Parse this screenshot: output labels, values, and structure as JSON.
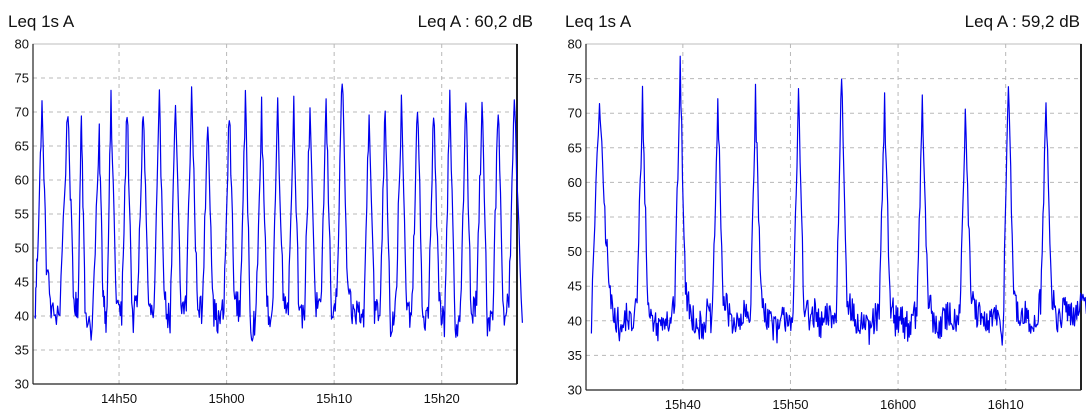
{
  "chart_data": [
    {
      "type": "line",
      "title": "Leq 1s A",
      "leq_label": "Leq A : 60,2 dB",
      "ylim": [
        30,
        80
      ],
      "yticks": [
        30,
        35,
        40,
        45,
        50,
        55,
        60,
        65,
        70,
        75,
        80
      ],
      "xlim": [
        "14h42",
        "15h27"
      ],
      "xticks": [
        "14h50",
        "15h00",
        "15h10",
        "15h20"
      ],
      "grid": true,
      "color": "#0000ee",
      "series": [
        {
          "x": [
            "14h42",
            "14h42",
            "14h42",
            "14h43",
            "14h43",
            "14h44",
            "14h45",
            "14h45",
            "14h46",
            "14h46",
            "14h46",
            "14h47",
            "14h48",
            "14h48",
            "14h48",
            "14h49",
            "14h49",
            "14h50",
            "14h50",
            "14h51",
            "14h51",
            "14h52",
            "14h52",
            "14h53",
            "14h53",
            "14h54",
            "14h54",
            "14h55",
            "14h55",
            "14h56",
            "14h56",
            "14h57",
            "14h57",
            "14h58",
            "14h58",
            "14h59",
            "14h59",
            "15h00",
            "15h00",
            "15h01",
            "15h01",
            "15h02",
            "15h02",
            "15h03",
            "15h03",
            "15h04",
            "15h04",
            "15h05",
            "15h05",
            "15h06",
            "15h06",
            "15h07",
            "15h07",
            "15h08",
            "15h08",
            "15h09",
            "15h09",
            "15h10",
            "15h10",
            "15h11",
            "15h11",
            "15h12",
            "15h12",
            "15h13",
            "15h13",
            "15h14",
            "15h14",
            "15h15",
            "15h15",
            "15h16",
            "15h16",
            "15h17",
            "15h17",
            "15h18",
            "15h18",
            "15h19",
            "15h19",
            "15h20",
            "15h20",
            "15h21",
            "15h21",
            "15h22",
            "15h22",
            "15h23",
            "15h23",
            "15h24",
            "15h24",
            "15h25",
            "15h25",
            "15h26",
            "15h26",
            "15h27"
          ],
          "y": [
            39,
            53,
            71,
            48,
            40,
            41,
            71,
            43,
            40,
            71,
            41,
            38,
            66,
            44,
            39,
            71,
            42,
            40,
            71,
            39,
            43,
            71,
            41,
            40,
            71,
            42,
            39,
            71,
            41,
            42,
            73,
            43,
            40,
            70,
            41,
            39,
            41,
            70,
            42,
            41,
            71,
            38,
            40,
            70,
            41,
            40,
            71,
            43,
            42,
            71,
            39,
            41,
            71,
            42,
            40,
            71,
            41,
            42,
            76,
            43,
            40,
            41,
            39,
            71,
            41,
            40,
            71,
            38,
            42,
            71,
            40,
            41,
            71,
            39,
            40,
            70,
            42,
            39,
            71,
            38,
            41,
            71,
            40,
            42,
            71,
            39,
            41,
            71,
            40,
            42,
            71,
            39
          ]
        }
      ]
    },
    {
      "type": "line",
      "title": "Leq 1s A",
      "leq_label": "Leq A : 59,2 dB",
      "ylim": [
        30,
        80
      ],
      "yticks": [
        30,
        35,
        40,
        45,
        50,
        55,
        60,
        65,
        70,
        75,
        80
      ],
      "xlim": [
        "15h31",
        "16h17"
      ],
      "xticks": [
        "15h40",
        "15h50",
        "16h00",
        "16h10"
      ],
      "grid": true,
      "color": "#0000ee",
      "series": [
        {
          "x": [
            "15h31",
            "15h32",
            "15h32",
            "15h33",
            "15h33",
            "15h34",
            "15h34",
            "15h35",
            "15h35",
            "15h36",
            "15h36",
            "15h37",
            "15h37",
            "15h38",
            "15h38",
            "15h39",
            "15h39",
            "15h40",
            "15h40",
            "15h41",
            "15h41",
            "15h42",
            "15h42",
            "15h43",
            "15h43",
            "15h44",
            "15h44",
            "15h45",
            "15h45",
            "15h46",
            "15h46",
            "15h47",
            "15h47",
            "15h48",
            "15h48",
            "15h49",
            "15h49",
            "15h50",
            "15h50",
            "15h51",
            "15h51",
            "15h52",
            "15h52",
            "15h53",
            "15h53",
            "15h54",
            "15h54",
            "15h55",
            "15h55",
            "15h56",
            "15h56",
            "15h57",
            "15h57",
            "15h58",
            "15h58",
            "15h59",
            "15h59",
            "16h00",
            "16h00",
            "16h01",
            "16h01",
            "16h02",
            "16h02",
            "16h03",
            "16h03",
            "16h04",
            "16h04",
            "16h05",
            "16h05",
            "16h06",
            "16h06",
            "16h07",
            "16h07",
            "16h08",
            "16h08",
            "16h09",
            "16h09",
            "16h10",
            "16h10",
            "16h11",
            "16h11",
            "16h12",
            "16h12",
            "16h13",
            "16h13",
            "16h14",
            "16h14",
            "16h15",
            "16h15",
            "16h16",
            "16h16",
            "16h17"
          ],
          "y": [
            40,
            72,
            55,
            43,
            41,
            38,
            41,
            39,
            43,
            72,
            42,
            40,
            39,
            41,
            40,
            43,
            76,
            44,
            41,
            40,
            39,
            41,
            40,
            71,
            43,
            41,
            40,
            39,
            41,
            40,
            72,
            44,
            41,
            40,
            38,
            40,
            41,
            40,
            72,
            43,
            40,
            41,
            39,
            40,
            41,
            40,
            76,
            44,
            41,
            39,
            40,
            38,
            40,
            41,
            71,
            43,
            40,
            41,
            39,
            40,
            41,
            71,
            44,
            40,
            39,
            40,
            41,
            40,
            42,
            70,
            44,
            41,
            40,
            39,
            41,
            40,
            38,
            76,
            43,
            40,
            41,
            39,
            40,
            43,
            71,
            44,
            40,
            41,
            42,
            40,
            43,
            41
          ]
        }
      ]
    }
  ]
}
